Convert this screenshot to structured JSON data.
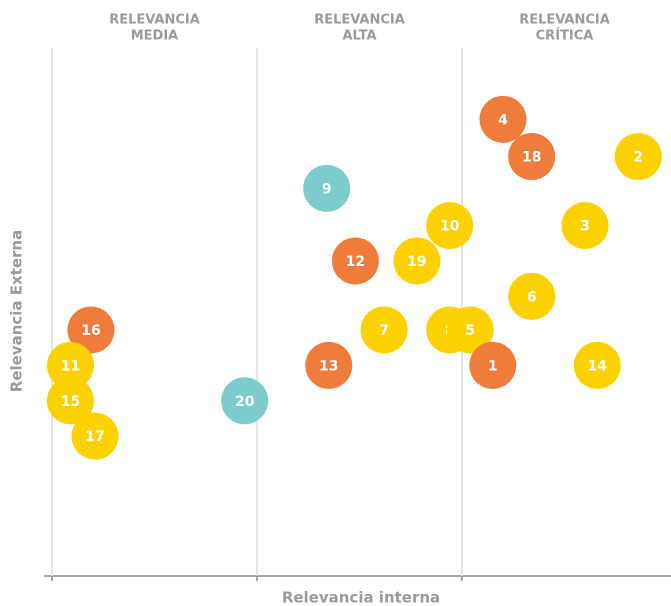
{
  "chart_data": {
    "type": "scatter",
    "x_label": "Relevancia interna",
    "y_label": "Relevancia Externa",
    "column_labels": [
      [
        "RELEVANCIA",
        "MEDIA"
      ],
      [
        "RELEVANCIA",
        "ALTA"
      ],
      [
        "RELEVANCIA",
        "CRÍTICA"
      ]
    ],
    "xlim": [
      0,
      3
    ],
    "ylim": [
      0,
      3
    ],
    "xticks": [
      0,
      1,
      2
    ],
    "grid": true,
    "labels": [
      "4",
      "18",
      "2",
      "9",
      "10",
      "3",
      "12",
      "19",
      "6",
      "16",
      "7",
      "8",
      "5",
      "11",
      "13",
      "1",
      "14",
      "15",
      "20",
      "17"
    ],
    "x": [
      2.2,
      2.34,
      2.86,
      1.34,
      1.94,
      2.6,
      1.48,
      1.78,
      2.34,
      0.19,
      1.62,
      1.94,
      2.04,
      0.09,
      1.35,
      2.15,
      2.66,
      0.09,
      0.94,
      0.21
    ],
    "y": [
      2.58,
      2.37,
      2.37,
      2.19,
      1.98,
      1.98,
      1.78,
      1.78,
      1.58,
      1.39,
      1.39,
      1.39,
      1.39,
      1.19,
      1.19,
      1.19,
      1.19,
      0.99,
      0.99,
      0.79
    ],
    "colors": [
      "#f07c3c",
      "#f07c3c",
      "#fdd000",
      "#7ccccc",
      "#fdd000",
      "#fdd000",
      "#f07c3c",
      "#fdd000",
      "#fdd000",
      "#f07c3c",
      "#fdd000",
      "#fdd000",
      "#fdd000",
      "#fdd000",
      "#f07c3c",
      "#f07c3c",
      "#fdd000",
      "#fdd000",
      "#7ccccc",
      "#fdd000"
    ]
  }
}
